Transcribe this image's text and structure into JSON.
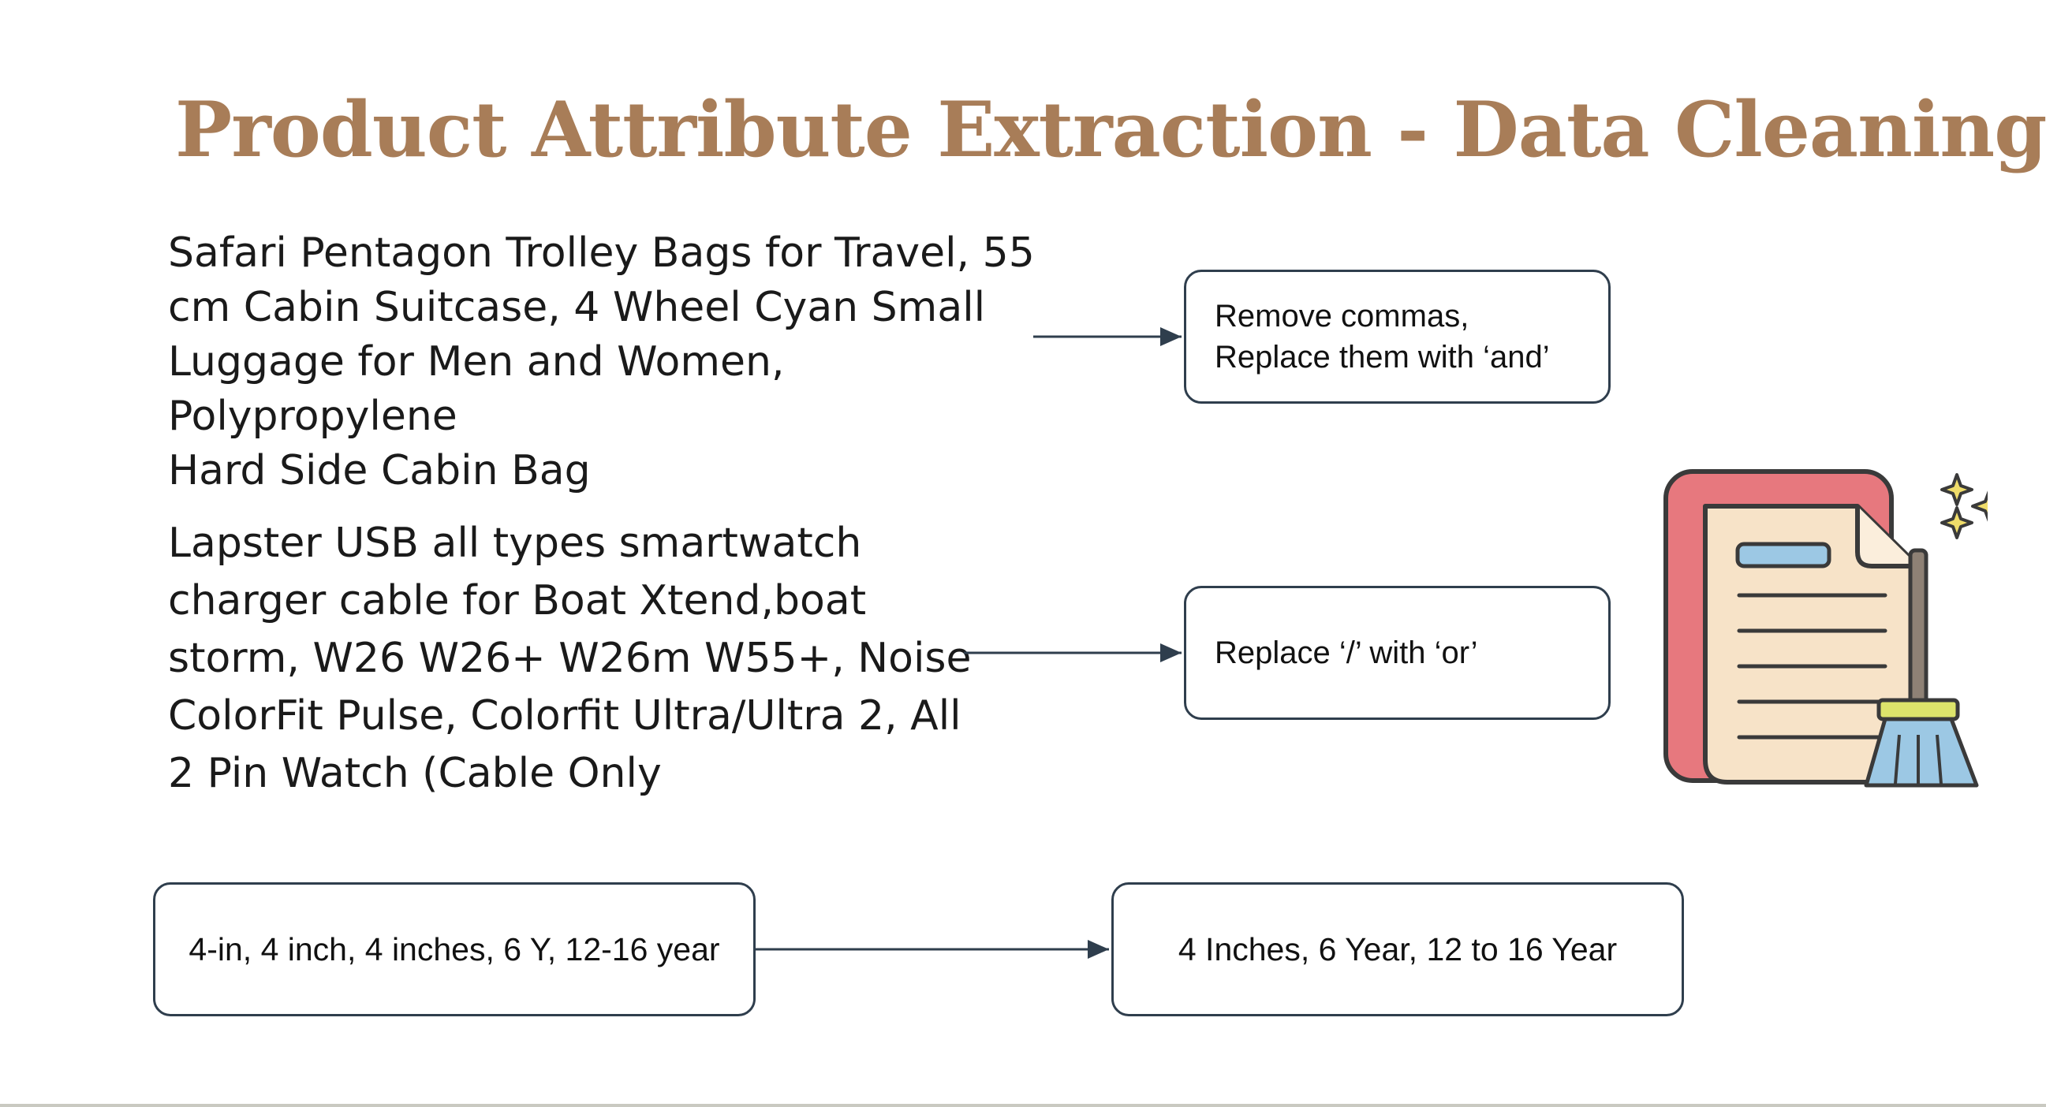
{
  "title": "Product Attribute Extraction - Data Cleaning",
  "examples": [
    {
      "text": "Safari Pentagon Trolley Bags for Travel, 55\ncm Cabin Suitcase, 4 Wheel Cyan Small\nLuggage for Men and Women, Polypropylene\nHard Side Cabin Bag",
      "rule": "Remove commas,\nReplace them with ‘and’"
    },
    {
      "text": "Lapster USB all types smartwatch\ncharger cable for Boat Xtend,boat\nstorm, W26 W26+ W26m W55+, Noise\nColorFit Pulse, Colorfit Ultra/Ultra 2, All\n2 Pin Watch (Cable Only",
      "rule": "Replace ‘/’ with ‘or’"
    }
  ],
  "normalization": {
    "input": "4-in, 4 inch, 4 inches, 6 Y, 12-16 year",
    "output": "4 Inches, 6 Year, 12 to 16 Year"
  },
  "colors": {
    "title": "#a87d58",
    "box_border": "#2f3e4d",
    "arrow": "#2f3e4d",
    "icon_back_doc": "#e7787e",
    "icon_front_doc": "#f7e3c8",
    "icon_label": "#9cc8e4",
    "icon_broom_band": "#dde46b",
    "icon_broom_bristles": "#9cc8e4",
    "icon_handle": "#8e8175",
    "icon_sparkle": "#f0dd6a"
  },
  "icons": [
    "document-icon",
    "broom-icon",
    "sparkle-icon"
  ]
}
